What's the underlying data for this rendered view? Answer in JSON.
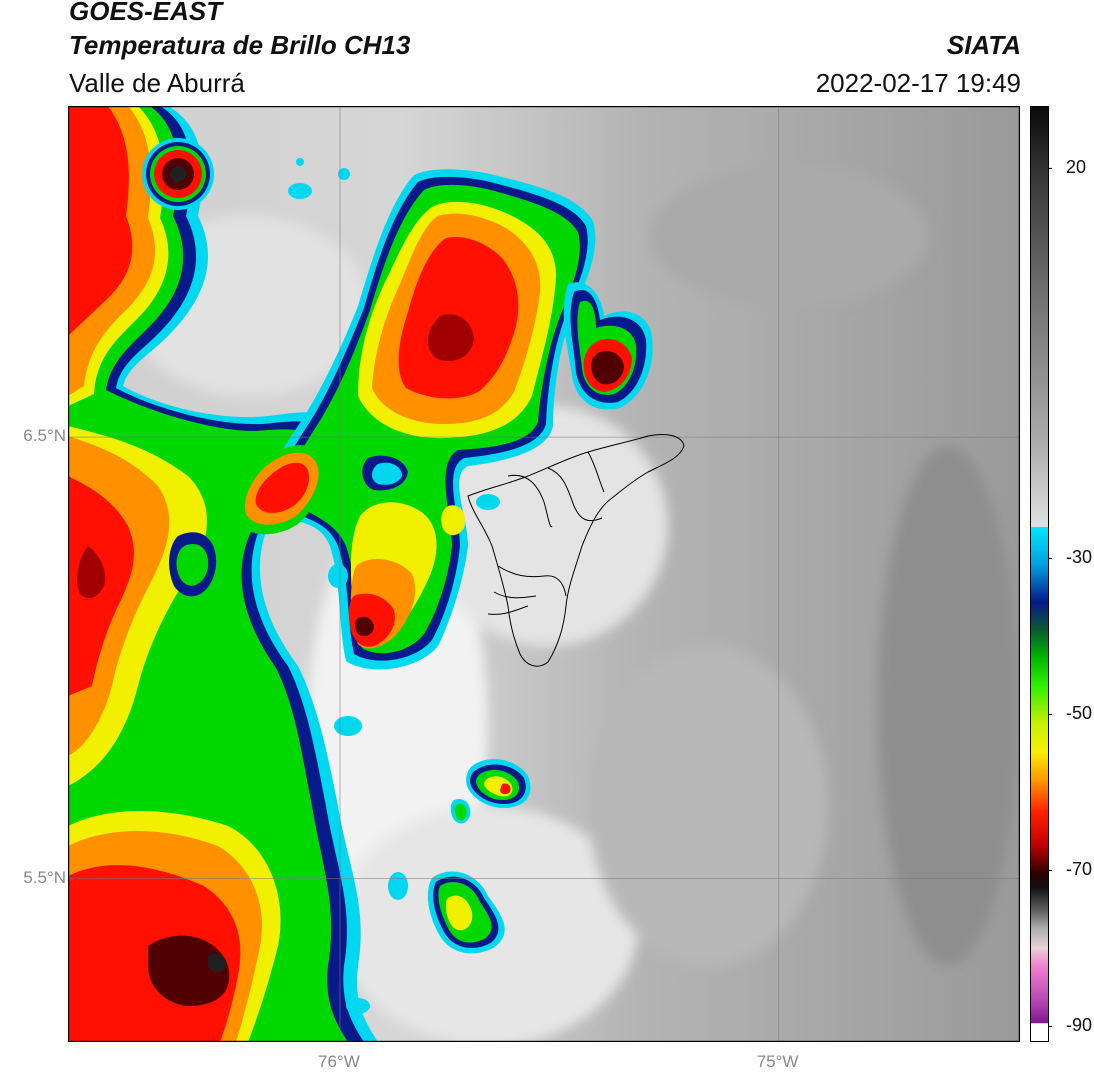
{
  "header": {
    "satellite": "GOES-EAST",
    "product": "Temperatura de Brillo CH13",
    "region": "Valle de Aburrá",
    "agency": "SIATA",
    "timestamp": "2022-02-17 19:49"
  },
  "map": {
    "lat_ticks": [
      {
        "value": 6.5,
        "label": "6.5°N"
      },
      {
        "value": 5.5,
        "label": "5.5°N"
      }
    ],
    "lon_ticks": [
      {
        "value": -76,
        "label": "76°W"
      },
      {
        "value": -75,
        "label": "75°W"
      }
    ],
    "extent": {
      "lon_min": -76.62,
      "lon_max": -74.45,
      "lat_min": 5.13,
      "lat_max": 7.25
    }
  },
  "colorbar": {
    "range": [
      -92,
      28
    ],
    "ticks": [
      {
        "value": 20,
        "label": "20"
      },
      {
        "value": -30,
        "label": "-30"
      },
      {
        "value": -50,
        "label": "-50"
      },
      {
        "value": -70,
        "label": "-70"
      },
      {
        "value": -90,
        "label": "-90"
      }
    ],
    "colors": {
      "cyan": "#00d8f0",
      "navy": "#081a8a",
      "green": "#00d800",
      "yellow": "#f0f000",
      "red": "#ff1000",
      "dark_red": "#500000"
    }
  }
}
